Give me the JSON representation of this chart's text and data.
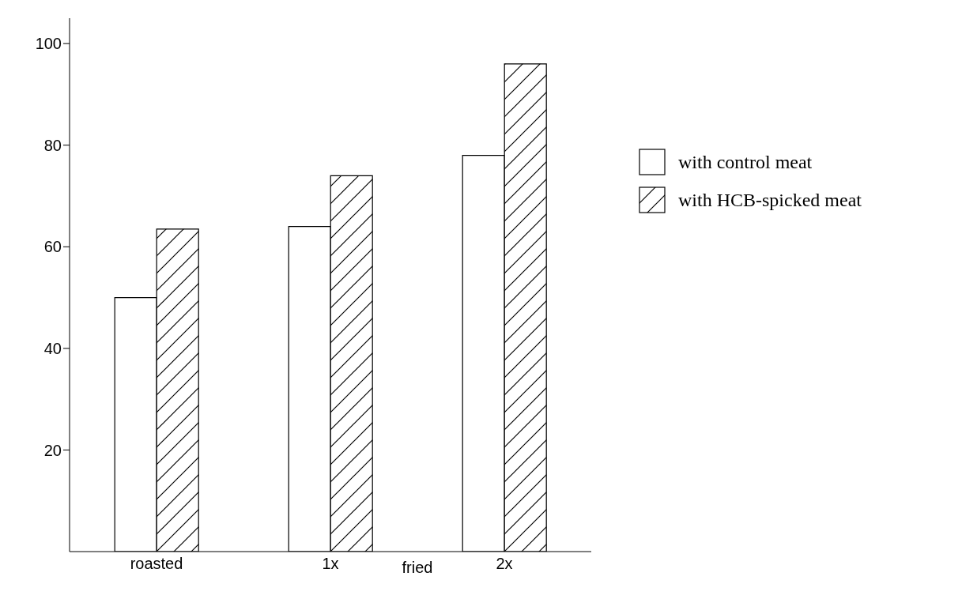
{
  "chart_data": {
    "type": "bar",
    "categories": [
      "roasted",
      "1x",
      "2x"
    ],
    "series": [
      {
        "name": "with control meat",
        "color": "#ffffff",
        "values": [
          50,
          64,
          78
        ]
      },
      {
        "name": "with HCB-spicked meat",
        "color": "#000000",
        "values": [
          63.5,
          74,
          96
        ]
      }
    ],
    "ylim": [
      0,
      105
    ],
    "yticks": [
      20,
      40,
      60,
      80,
      100
    ],
    "legend": "right",
    "annotations": [
      "fried"
    ]
  }
}
